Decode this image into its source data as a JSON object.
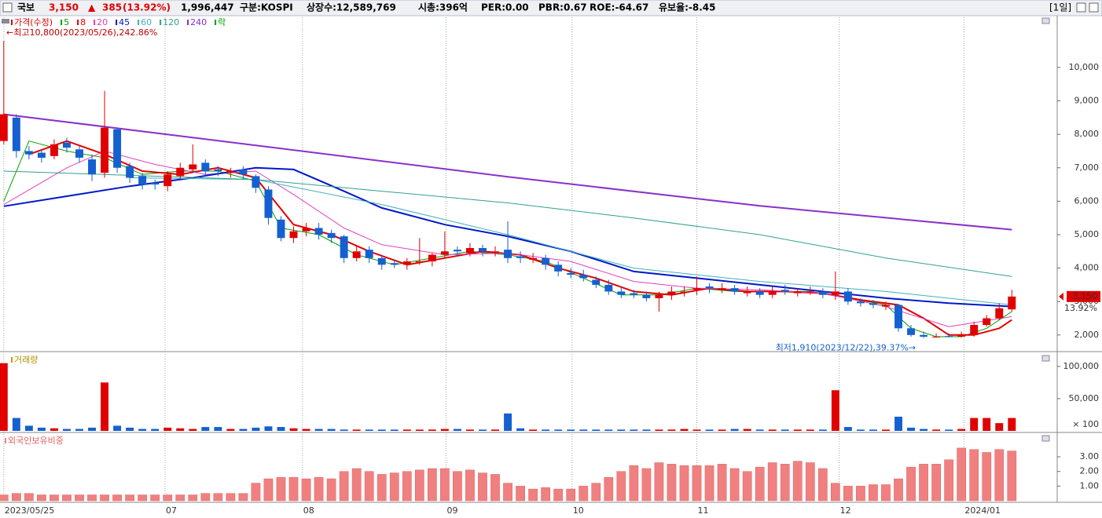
{
  "header": {
    "name": "국보",
    "price": "3,150",
    "arrow": "▲",
    "change": "385",
    "change_pct": "(13.92%)",
    "volume": "1,996,447",
    "market": "구분:KOSPI",
    "shares": "상장수:12,589,769",
    "cap": "시총:396억",
    "per": "PER:0.00",
    "pbr": "PBR:0.67",
    "roe": "ROE:-64.67",
    "reserve": "유보율:-8.45",
    "period": "[1일]"
  },
  "chart_data": [
    {
      "type": "candlestick",
      "price_name": "가격(수정)",
      "lock_label": "락",
      "up_color": "#e00000",
      "down_color": "#1560d0",
      "max_label": "←최고10,800(2023/05/26),242.86%",
      "min_label": "최저1,910(2023/12/22),39.37%→",
      "last_price_label": "3,150",
      "last_change_label": "13.92%",
      "xlim": [
        -0.3,
        83.6
      ],
      "ylim": [
        1550,
        11500
      ],
      "yticks": [
        {
          "value": 2000,
          "label": "2,000"
        },
        {
          "value": 3000,
          "label": "3,000"
        },
        {
          "value": 4000,
          "label": "4,000"
        },
        {
          "value": 5000,
          "label": "5,000"
        },
        {
          "value": 6000,
          "label": "6,000"
        },
        {
          "value": 7000,
          "label": "7,000"
        },
        {
          "value": 8000,
          "label": "8,000"
        },
        {
          "value": 9000,
          "label": "9,000"
        },
        {
          "value": 10000,
          "label": "10,000"
        }
      ],
      "open": [
        7800,
        8500,
        7500,
        7450,
        7350,
        7750,
        7550,
        7250,
        6850,
        8150,
        7050,
        6750,
        6550,
        6450,
        6750,
        6950,
        7150,
        6950,
        6850,
        6950,
        6750,
        6350,
        5450,
        4900,
        5100,
        5200,
        5050,
        4950,
        4300,
        4550,
        4300,
        4150,
        4100,
        4200,
        4200,
        4400,
        4550,
        4450,
        4600,
        4450,
        4550,
        4350,
        4250,
        4300,
        4100,
        3850,
        3800,
        3650,
        3500,
        3300,
        3250,
        3200,
        3100,
        3200,
        3300,
        3350,
        3450,
        3350,
        3400,
        3250,
        3300,
        3200,
        3350,
        3250,
        3300,
        3300,
        3200,
        3300,
        3000,
        2950,
        2850,
        2900,
        2200,
        2000,
        1950,
        1970,
        1950,
        2000,
        2300,
        2500,
        2765
      ],
      "high": [
        10800,
        8600,
        7650,
        7550,
        7850,
        7900,
        7650,
        7400,
        9300,
        8200,
        7150,
        6850,
        6650,
        6900,
        7150,
        7700,
        7250,
        7050,
        7000,
        7050,
        6800,
        6450,
        5550,
        5250,
        5350,
        5350,
        5150,
        5000,
        4650,
        4650,
        4400,
        4250,
        4300,
        4900,
        4450,
        5100,
        4650,
        4750,
        4700,
        4650,
        5400,
        4500,
        4450,
        4400,
        4200,
        4000,
        3950,
        3750,
        3650,
        3450,
        3350,
        3300,
        3300,
        3450,
        3450,
        3750,
        3550,
        3550,
        3500,
        3450,
        3400,
        3450,
        3500,
        3400,
        3450,
        3400,
        3900,
        3400,
        3100,
        3050,
        3000,
        2900,
        2300,
        2100,
        2050,
        2050,
        2100,
        2400,
        2600,
        2950,
        3350
      ],
      "low": [
        7700,
        7300,
        7250,
        7150,
        7250,
        7450,
        7150,
        6600,
        6700,
        6850,
        6550,
        6350,
        6350,
        6300,
        6650,
        6850,
        6750,
        6750,
        6700,
        6650,
        6250,
        5300,
        4800,
        4750,
        4950,
        4850,
        4750,
        4150,
        4200,
        4150,
        3950,
        4000,
        3950,
        4100,
        4050,
        4300,
        4350,
        4350,
        4350,
        4350,
        4150,
        4150,
        4150,
        3950,
        3750,
        3700,
        3600,
        3400,
        3200,
        3100,
        3100,
        3000,
        2700,
        3050,
        3150,
        3200,
        3250,
        3250,
        3200,
        3150,
        3100,
        3100,
        3200,
        3150,
        3200,
        3100,
        3050,
        2900,
        2850,
        2800,
        2750,
        2100,
        1950,
        1910,
        1920,
        1930,
        1930,
        1950,
        2250,
        2450,
        2700
      ],
      "close": [
        8600,
        7500,
        7400,
        7300,
        7700,
        7600,
        7300,
        6800,
        8200,
        7000,
        6700,
        6500,
        6500,
        6800,
        7000,
        7100,
        6900,
        6900,
        6900,
        6800,
        6400,
        5500,
        4900,
        5100,
        5200,
        5000,
        4900,
        4300,
        4500,
        4300,
        4100,
        4100,
        4200,
        4200,
        4400,
        4500,
        4500,
        4600,
        4500,
        4500,
        4300,
        4300,
        4300,
        4100,
        3900,
        3800,
        3700,
        3500,
        3300,
        3200,
        3200,
        3100,
        3200,
        3300,
        3300,
        3400,
        3400,
        3400,
        3300,
        3300,
        3200,
        3300,
        3300,
        3300,
        3300,
        3200,
        3300,
        3000,
        2950,
        2900,
        2900,
        2200,
        2000,
        1950,
        1950,
        1950,
        2000,
        2300,
        2500,
        2800,
        3150
      ],
      "series": [
        {
          "name": "5",
          "color": "#00a000",
          "width": 1,
          "x": [
            0,
            2,
            5,
            8,
            11,
            14,
            17,
            20,
            22,
            25,
            28,
            31,
            34,
            37,
            40,
            43,
            46,
            49,
            52,
            55,
            58,
            61,
            64,
            67,
            70,
            72,
            74,
            76,
            78,
            80
          ],
          "values": [
            6000,
            7800,
            7500,
            7300,
            6800,
            6900,
            6900,
            6600,
            5200,
            5000,
            4400,
            4100,
            4300,
            4500,
            4400,
            4200,
            3700,
            3200,
            3200,
            3400,
            3300,
            3300,
            3300,
            3100,
            2900,
            2200,
            1950,
            1950,
            2200,
            2700
          ]
        },
        {
          "name": "8",
          "color": "#e00000",
          "width": 2,
          "x": [
            2,
            5,
            8,
            11,
            14,
            17,
            20,
            23,
            26,
            29,
            32,
            35,
            38,
            41,
            44,
            47,
            50,
            53,
            56,
            59,
            62,
            65,
            68,
            71,
            73,
            75,
            77,
            79,
            80
          ],
          "values": [
            7400,
            7800,
            7400,
            6900,
            6800,
            7000,
            6700,
            5300,
            5000,
            4500,
            4100,
            4300,
            4500,
            4400,
            4000,
            3700,
            3300,
            3200,
            3400,
            3300,
            3300,
            3250,
            3050,
            2900,
            2500,
            2000,
            2000,
            2200,
            2450
          ]
        },
        {
          "name": "20",
          "color": "#e040c0",
          "width": 1,
          "x": [
            0,
            5,
            8,
            12,
            16,
            20,
            23,
            27,
            30,
            35,
            40,
            45,
            50,
            55,
            60,
            65,
            70,
            75,
            80
          ],
          "values": [
            5900,
            7000,
            7500,
            7100,
            6800,
            6900,
            6200,
            5200,
            4700,
            4400,
            4450,
            4200,
            3600,
            3400,
            3350,
            3250,
            2850,
            2250,
            2550
          ]
        },
        {
          "name": "45",
          "color": "#0018c8",
          "width": 2,
          "x": [
            0,
            5,
            10,
            15,
            20,
            23,
            27,
            30,
            35,
            40,
            45,
            50,
            55,
            60,
            65,
            70,
            75,
            80
          ],
          "values": [
            5850,
            6150,
            6450,
            6700,
            7000,
            6950,
            6300,
            5800,
            5300,
            4950,
            4500,
            3900,
            3700,
            3500,
            3300,
            3100,
            2950,
            2850
          ]
        },
        {
          "name": "60",
          "color": "#40b0c0",
          "width": 1,
          "x": [
            10,
            20,
            30,
            40,
            50,
            60,
            70,
            80
          ],
          "values": [
            6700,
            6650,
            5900,
            5000,
            4000,
            3600,
            3300,
            2900
          ]
        },
        {
          "name": "120",
          "color": "#30a090",
          "width": 1,
          "x": [
            0,
            20,
            30,
            40,
            50,
            60,
            70,
            80
          ],
          "values": [
            6900,
            6650,
            6300,
            5950,
            5500,
            5000,
            4300,
            3750
          ]
        },
        {
          "name": "240",
          "color": "#8a30c8",
          "width": 2,
          "x": [
            0,
            20,
            40,
            60,
            80
          ],
          "values": [
            8600,
            7670,
            6730,
            5860,
            5150
          ]
        }
      ]
    },
    {
      "type": "volume",
      "title": "거래량",
      "unit_label": "× 100",
      "xlim": [
        -0.3,
        83.6
      ],
      "ylim": [
        0,
        118000
      ],
      "yticks": [
        {
          "value": 50000,
          "label": "50,000"
        },
        {
          "value": 100000,
          "label": "100,000"
        }
      ],
      "values": [
        105000,
        20000,
        8000,
        5000,
        4000,
        3000,
        3000,
        5000,
        75000,
        8000,
        5000,
        3000,
        3000,
        5000,
        4000,
        3000,
        6000,
        6000,
        3000,
        3000,
        5000,
        7000,
        6000,
        4000,
        3000,
        3000,
        3000,
        2000,
        2000,
        2000,
        2000,
        2000,
        2000,
        2000,
        2000,
        3000,
        3000,
        2000,
        2000,
        2000,
        27000,
        4000,
        2000,
        2000,
        2000,
        2000,
        2000,
        2000,
        2000,
        2000,
        2000,
        2000,
        2000,
        2000,
        3000,
        2000,
        2000,
        2000,
        3000,
        3000,
        2000,
        2000,
        2000,
        2000,
        2000,
        2000,
        63000,
        6000,
        2000,
        2000,
        2000,
        22000,
        5000,
        3000,
        2000,
        2000,
        3000,
        20000,
        20000,
        12000,
        20000
      ]
    },
    {
      "type": "bar",
      "title": "외국인보유비중",
      "color": "#f08080",
      "xlim": [
        -0.3,
        83.6
      ],
      "ylim": [
        0,
        4.45
      ],
      "yticks": [
        {
          "value": 1,
          "label": "1.00"
        },
        {
          "value": 2,
          "label": "2.00"
        },
        {
          "value": 3,
          "label": "3.00"
        }
      ],
      "xticks": [
        {
          "value": 0,
          "label": "2023/05/25"
        },
        {
          "value": 12.8,
          "label": "07"
        },
        {
          "value": 23.7,
          "label": "08"
        },
        {
          "value": 35.1,
          "label": "09"
        },
        {
          "value": 45.1,
          "label": "10"
        },
        {
          "value": 55,
          "label": "11"
        },
        {
          "value": 66.3,
          "label": "12"
        },
        {
          "value": 76.2,
          "label": "2024/01"
        }
      ],
      "values": [
        0.4,
        0.5,
        0.5,
        0.4,
        0.4,
        0.4,
        0.4,
        0.4,
        0.4,
        0.4,
        0.4,
        0.4,
        0.4,
        0.4,
        0.4,
        0.4,
        0.5,
        0.5,
        0.5,
        0.5,
        1.2,
        1.5,
        1.6,
        1.6,
        1.5,
        1.6,
        1.5,
        2.0,
        2.2,
        2.0,
        1.8,
        1.9,
        2.0,
        2.1,
        2.2,
        2.2,
        2.0,
        2.1,
        1.9,
        1.8,
        1.2,
        1.0,
        0.8,
        0.9,
        0.8,
        0.8,
        1.0,
        1.2,
        1.6,
        2.0,
        2.4,
        2.2,
        2.6,
        2.5,
        2.4,
        2.4,
        2.4,
        2.5,
        2.2,
        2.0,
        2.3,
        2.6,
        2.5,
        2.7,
        2.6,
        2.2,
        1.2,
        1.0,
        1.0,
        1.1,
        1.1,
        1.5,
        2.3,
        2.5,
        2.5,
        2.8,
        3.6,
        3.5,
        3.3,
        3.5,
        3.4
      ]
    }
  ]
}
